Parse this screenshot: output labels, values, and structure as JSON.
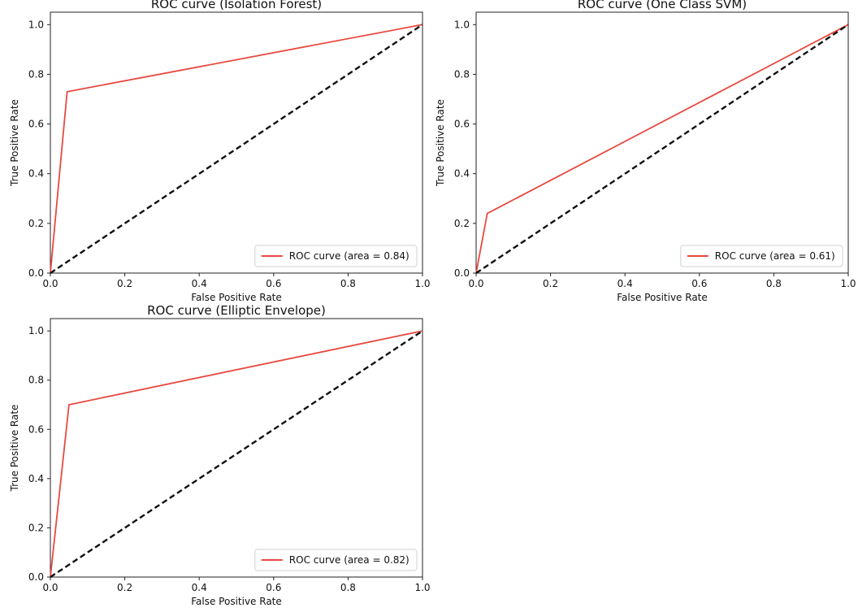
{
  "chart_data": [
    {
      "type": "line",
      "title": "ROC curve (Isolation Forest)",
      "xlabel": "False Positive Rate",
      "ylabel": "True Positive Rate",
      "xlim": [
        0.0,
        1.0
      ],
      "ylim": [
        0.0,
        1.05
      ],
      "xticks": [
        "0.0",
        "0.2",
        "0.4",
        "0.6",
        "0.8",
        "1.0"
      ],
      "yticks": [
        "0.0",
        "0.2",
        "0.4",
        "0.6",
        "0.8",
        "1.0"
      ],
      "legend_position": "lower-right",
      "series": [
        {
          "name": "ROC curve (area = 0.84)",
          "color": "#e8493f",
          "style": "solid",
          "x": [
            0.0,
            0.045,
            1.0
          ],
          "y": [
            0.0,
            0.73,
            1.0
          ]
        },
        {
          "color": "#111111",
          "style": "dashed",
          "x": [
            0.0,
            1.0
          ],
          "y": [
            0.0,
            1.0
          ]
        }
      ]
    },
    {
      "type": "line",
      "title": "ROC curve (One Class SVM)",
      "xlabel": "False Positive Rate",
      "ylabel": "True Positive Rate",
      "xlim": [
        0.0,
        1.0
      ],
      "ylim": [
        0.0,
        1.05
      ],
      "xticks": [
        "0.0",
        "0.2",
        "0.4",
        "0.6",
        "0.8",
        "1.0"
      ],
      "yticks": [
        "0.0",
        "0.2",
        "0.4",
        "0.6",
        "0.8",
        "1.0"
      ],
      "legend_position": "lower-right",
      "series": [
        {
          "name": "ROC curve (area = 0.61)",
          "color": "#e8493f",
          "style": "solid",
          "x": [
            0.0,
            0.03,
            1.0
          ],
          "y": [
            0.0,
            0.24,
            1.0
          ]
        },
        {
          "color": "#111111",
          "style": "dashed",
          "x": [
            0.0,
            1.0
          ],
          "y": [
            0.0,
            1.0
          ]
        }
      ]
    },
    {
      "type": "line",
      "title": "ROC curve (Elliptic Envelope)",
      "xlabel": "False Positive Rate",
      "ylabel": "True Positive Rate",
      "xlim": [
        0.0,
        1.0
      ],
      "ylim": [
        0.0,
        1.05
      ],
      "xticks": [
        "0.0",
        "0.2",
        "0.4",
        "0.6",
        "0.8",
        "1.0"
      ],
      "yticks": [
        "0.0",
        "0.2",
        "0.4",
        "0.6",
        "0.8",
        "1.0"
      ],
      "legend_position": "lower-right",
      "series": [
        {
          "name": "ROC curve (area = 0.82)",
          "color": "#e8493f",
          "style": "solid",
          "x": [
            0.0,
            0.05,
            1.0
          ],
          "y": [
            0.0,
            0.7,
            1.0
          ]
        },
        {
          "color": "#111111",
          "style": "dashed",
          "x": [
            0.0,
            1.0
          ],
          "y": [
            0.0,
            1.0
          ]
        }
      ]
    }
  ]
}
